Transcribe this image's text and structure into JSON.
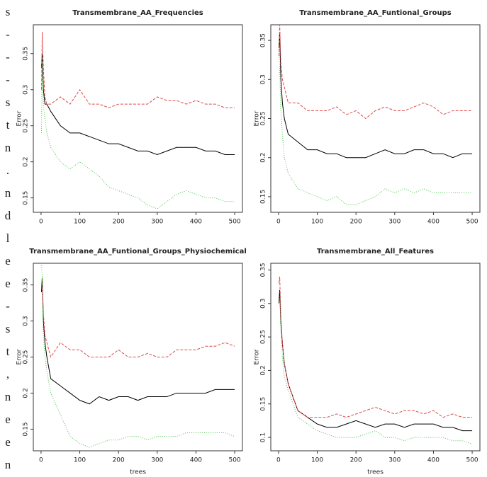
{
  "side_text": [
    "s",
    "-",
    "-",
    "-",
    "s",
    "t",
    "n",
    ".",
    "n",
    "d",
    "l",
    "e",
    "e",
    "-",
    "s",
    "t",
    ",",
    "n",
    "e",
    "e",
    "n"
  ],
  "chart_data": [
    {
      "type": "line",
      "title": "Transmembrane_AA_Frequencies",
      "y_label": "Error",
      "x": [
        1,
        3,
        6,
        10,
        15,
        25,
        50,
        75,
        100,
        125,
        150,
        175,
        200,
        225,
        250,
        275,
        300,
        325,
        350,
        375,
        400,
        425,
        450,
        475,
        500
      ],
      "xlim": [
        -20,
        520
      ],
      "xticks": [
        0,
        100,
        200,
        300,
        400,
        500
      ],
      "ylim": [
        0.13,
        0.39
      ],
      "yticks": [
        0.15,
        0.2,
        0.25,
        0.3,
        0.35
      ],
      "series": [
        {
          "color": "#000000",
          "linestyle": "solid",
          "values": [
            0.33,
            0.35,
            0.3,
            0.28,
            0.28,
            0.27,
            0.25,
            0.24,
            0.24,
            0.235,
            0.23,
            0.225,
            0.225,
            0.22,
            0.215,
            0.215,
            0.21,
            0.215,
            0.22,
            0.22,
            0.22,
            0.215,
            0.215,
            0.21,
            0.21
          ]
        },
        {
          "color": "#df4a4a",
          "linestyle": "dashed",
          "values": [
            0.3,
            0.38,
            0.33,
            0.29,
            0.28,
            0.28,
            0.29,
            0.28,
            0.3,
            0.28,
            0.28,
            0.275,
            0.28,
            0.28,
            0.28,
            0.28,
            0.29,
            0.285,
            0.285,
            0.28,
            0.285,
            0.28,
            0.28,
            0.275,
            0.275
          ]
        },
        {
          "color": "#4cc44c",
          "linestyle": "dotted",
          "values": [
            0.24,
            0.34,
            0.28,
            0.26,
            0.24,
            0.22,
            0.2,
            0.19,
            0.2,
            0.19,
            0.18,
            0.165,
            0.16,
            0.155,
            0.15,
            0.14,
            0.135,
            0.145,
            0.155,
            0.16,
            0.155,
            0.15,
            0.15,
            0.145,
            0.145
          ]
        }
      ]
    },
    {
      "type": "line",
      "title": "Transmembrane_AA_Funtional_Groups",
      "y_label": "Error",
      "x": [
        1,
        3,
        6,
        10,
        15,
        25,
        50,
        75,
        100,
        125,
        150,
        175,
        200,
        225,
        250,
        275,
        300,
        325,
        350,
        375,
        400,
        425,
        450,
        475,
        500
      ],
      "xlim": [
        -20,
        520
      ],
      "xticks": [
        0,
        100,
        200,
        300,
        400,
        500
      ],
      "ylim": [
        0.13,
        0.37
      ],
      "yticks": [
        0.15,
        0.2,
        0.25,
        0.3,
        0.35
      ],
      "series": [
        {
          "color": "#000000",
          "linestyle": "solid",
          "values": [
            0.34,
            0.36,
            0.3,
            0.27,
            0.25,
            0.23,
            0.22,
            0.21,
            0.21,
            0.205,
            0.205,
            0.2,
            0.2,
            0.2,
            0.205,
            0.21,
            0.205,
            0.205,
            0.21,
            0.21,
            0.205,
            0.205,
            0.2,
            0.205,
            0.205
          ]
        },
        {
          "color": "#df4a4a",
          "linestyle": "dashed",
          "values": [
            0.33,
            0.37,
            0.32,
            0.3,
            0.29,
            0.27,
            0.27,
            0.26,
            0.26,
            0.26,
            0.265,
            0.255,
            0.26,
            0.25,
            0.26,
            0.265,
            0.26,
            0.26,
            0.265,
            0.27,
            0.265,
            0.255,
            0.26,
            0.26,
            0.26
          ]
        },
        {
          "color": "#4cc44c",
          "linestyle": "dotted",
          "values": [
            0.35,
            0.31,
            0.26,
            0.23,
            0.2,
            0.18,
            0.16,
            0.155,
            0.15,
            0.145,
            0.15,
            0.14,
            0.14,
            0.145,
            0.15,
            0.16,
            0.155,
            0.16,
            0.155,
            0.16,
            0.155,
            0.155,
            0.155,
            0.155,
            0.155
          ]
        }
      ]
    },
    {
      "type": "line",
      "title": "Transmembrane_AA_Funtional_Groups_Physiochemical",
      "y_label": "Error",
      "x_label": "trees",
      "x": [
        1,
        3,
        6,
        10,
        15,
        25,
        50,
        75,
        100,
        125,
        150,
        175,
        200,
        225,
        250,
        275,
        300,
        325,
        350,
        375,
        400,
        425,
        450,
        475,
        500
      ],
      "xlim": [
        -20,
        520
      ],
      "xticks": [
        0,
        100,
        200,
        300,
        400,
        500
      ],
      "ylim": [
        0.12,
        0.38
      ],
      "yticks": [
        0.15,
        0.2,
        0.25,
        0.3,
        0.35
      ],
      "series": [
        {
          "color": "#000000",
          "linestyle": "solid",
          "values": [
            0.34,
            0.36,
            0.3,
            0.27,
            0.25,
            0.22,
            0.21,
            0.2,
            0.19,
            0.185,
            0.195,
            0.19,
            0.195,
            0.195,
            0.19,
            0.195,
            0.195,
            0.195,
            0.2,
            0.2,
            0.2,
            0.2,
            0.205,
            0.205,
            0.205
          ]
        },
        {
          "color": "#df4a4a",
          "linestyle": "dashed",
          "values": [
            0.35,
            0.36,
            0.31,
            0.28,
            0.27,
            0.25,
            0.27,
            0.26,
            0.26,
            0.25,
            0.25,
            0.25,
            0.26,
            0.25,
            0.25,
            0.255,
            0.25,
            0.25,
            0.26,
            0.26,
            0.26,
            0.265,
            0.265,
            0.27,
            0.265
          ]
        },
        {
          "color": "#4cc44c",
          "linestyle": "dotted",
          "values": [
            0.38,
            0.36,
            0.28,
            0.25,
            0.23,
            0.2,
            0.17,
            0.14,
            0.13,
            0.125,
            0.13,
            0.135,
            0.135,
            0.14,
            0.14,
            0.135,
            0.14,
            0.14,
            0.14,
            0.145,
            0.145,
            0.145,
            0.145,
            0.145,
            0.14
          ]
        }
      ]
    },
    {
      "type": "line",
      "title": "Transmembrane_All_Features",
      "y_label": "Error",
      "x_label": "trees",
      "x": [
        1,
        3,
        6,
        10,
        15,
        25,
        50,
        75,
        100,
        125,
        150,
        175,
        200,
        225,
        250,
        275,
        300,
        325,
        350,
        375,
        400,
        425,
        450,
        475,
        500
      ],
      "xlim": [
        -20,
        520
      ],
      "xticks": [
        0,
        100,
        200,
        300,
        400,
        500
      ],
      "ylim": [
        0.08,
        0.36
      ],
      "yticks": [
        0.1,
        0.15,
        0.2,
        0.25,
        0.3,
        0.35
      ],
      "series": [
        {
          "color": "#000000",
          "linestyle": "solid",
          "values": [
            0.3,
            0.32,
            0.27,
            0.24,
            0.21,
            0.18,
            0.14,
            0.13,
            0.12,
            0.115,
            0.115,
            0.12,
            0.125,
            0.12,
            0.115,
            0.12,
            0.12,
            0.115,
            0.12,
            0.12,
            0.12,
            0.115,
            0.115,
            0.11,
            0.11
          ]
        },
        {
          "color": "#df4a4a",
          "linestyle": "dashed",
          "values": [
            0.33,
            0.34,
            0.28,
            0.24,
            0.21,
            0.18,
            0.14,
            0.13,
            0.13,
            0.13,
            0.135,
            0.13,
            0.135,
            0.14,
            0.145,
            0.14,
            0.135,
            0.14,
            0.14,
            0.135,
            0.14,
            0.13,
            0.135,
            0.13,
            0.13
          ]
        },
        {
          "color": "#4cc44c",
          "linestyle": "dotted",
          "values": [
            0.3,
            0.31,
            0.27,
            0.22,
            0.19,
            0.17,
            0.13,
            0.12,
            0.11,
            0.105,
            0.1,
            0.1,
            0.1,
            0.105,
            0.11,
            0.1,
            0.1,
            0.095,
            0.1,
            0.1,
            0.1,
            0.1,
            0.095,
            0.095,
            0.09
          ]
        }
      ]
    }
  ]
}
